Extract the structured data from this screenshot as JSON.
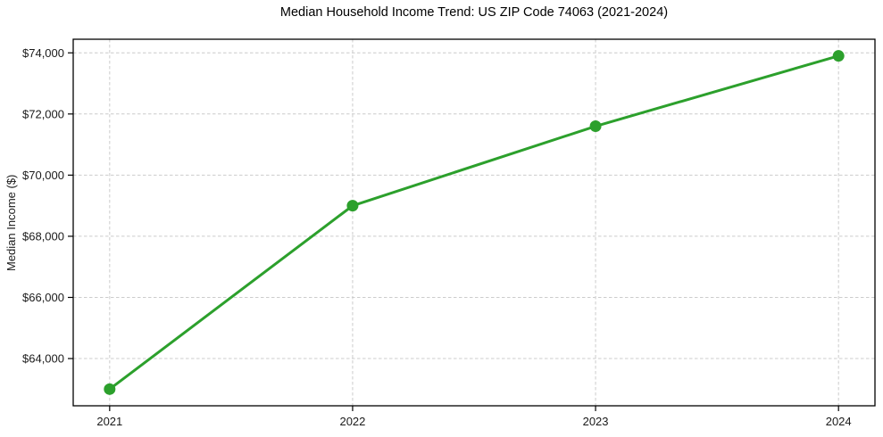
{
  "chart_data": {
    "type": "line",
    "title": "Median Household Income Trend: US ZIP Code 74063 (2021-2024)",
    "xlabel": "",
    "ylabel": "Median Income ($)",
    "categories": [
      2021,
      2022,
      2023,
      2024
    ],
    "x_tick_labels": [
      "2021",
      "2022",
      "2023",
      "2024"
    ],
    "series": [
      {
        "values": [
          63000,
          69000,
          71600,
          73900
        ],
        "color": "#2ca02c",
        "marker": "circle"
      }
    ],
    "y_ticks": [
      64000,
      66000,
      68000,
      70000,
      72000,
      74000
    ],
    "y_tick_labels": [
      "$64,000",
      "$66,000",
      "$68,000",
      "$70,000",
      "$72,000",
      "$74,000"
    ],
    "ylim": [
      62455,
      74445
    ],
    "xlim": [
      2020.85,
      2024.15
    ],
    "grid": {
      "visible": true,
      "style": "dashed",
      "color": "#cccccc"
    },
    "legend": {
      "visible": false
    },
    "colors": {
      "line": "#2ca02c",
      "grid": "#cccccc",
      "axis": "#000000",
      "tick_text": "#1a1a1a",
      "background": "#ffffff"
    }
  }
}
